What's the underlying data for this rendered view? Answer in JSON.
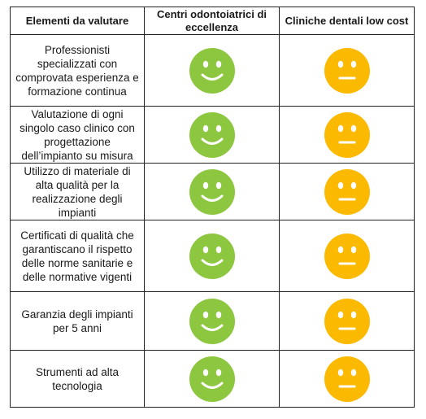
{
  "header": {
    "col1": "Elementi da valutare",
    "col2": "Centri odontoiatrici di eccellenza",
    "col3": "Cliniche dentali low cost"
  },
  "colors": {
    "happy_face": "#8dc63f",
    "neutral_face": "#fbb900",
    "feature": "#ffffff",
    "border": "#222222"
  },
  "icons": {
    "excellence": "smiling-face-icon",
    "lowcost": "neutral-face-icon"
  },
  "rows": [
    {
      "criterion": "Professionisti specializzati con comprovata esperienza e formazione continua"
    },
    {
      "criterion": "Valutazione di ogni singolo caso clinico con progettazione dell’impianto su misura"
    },
    {
      "criterion": "Utilizzo di materiale di alta qualità per la realizzazione degli impianti"
    },
    {
      "criterion": "Certificati di qualità che garantiscano il rispetto delle norme sanitarie e delle normative vigenti"
    },
    {
      "criterion": "Garanzia degli impianti per 5 anni"
    },
    {
      "criterion": "Strumenti ad alta tecnologia"
    }
  ]
}
